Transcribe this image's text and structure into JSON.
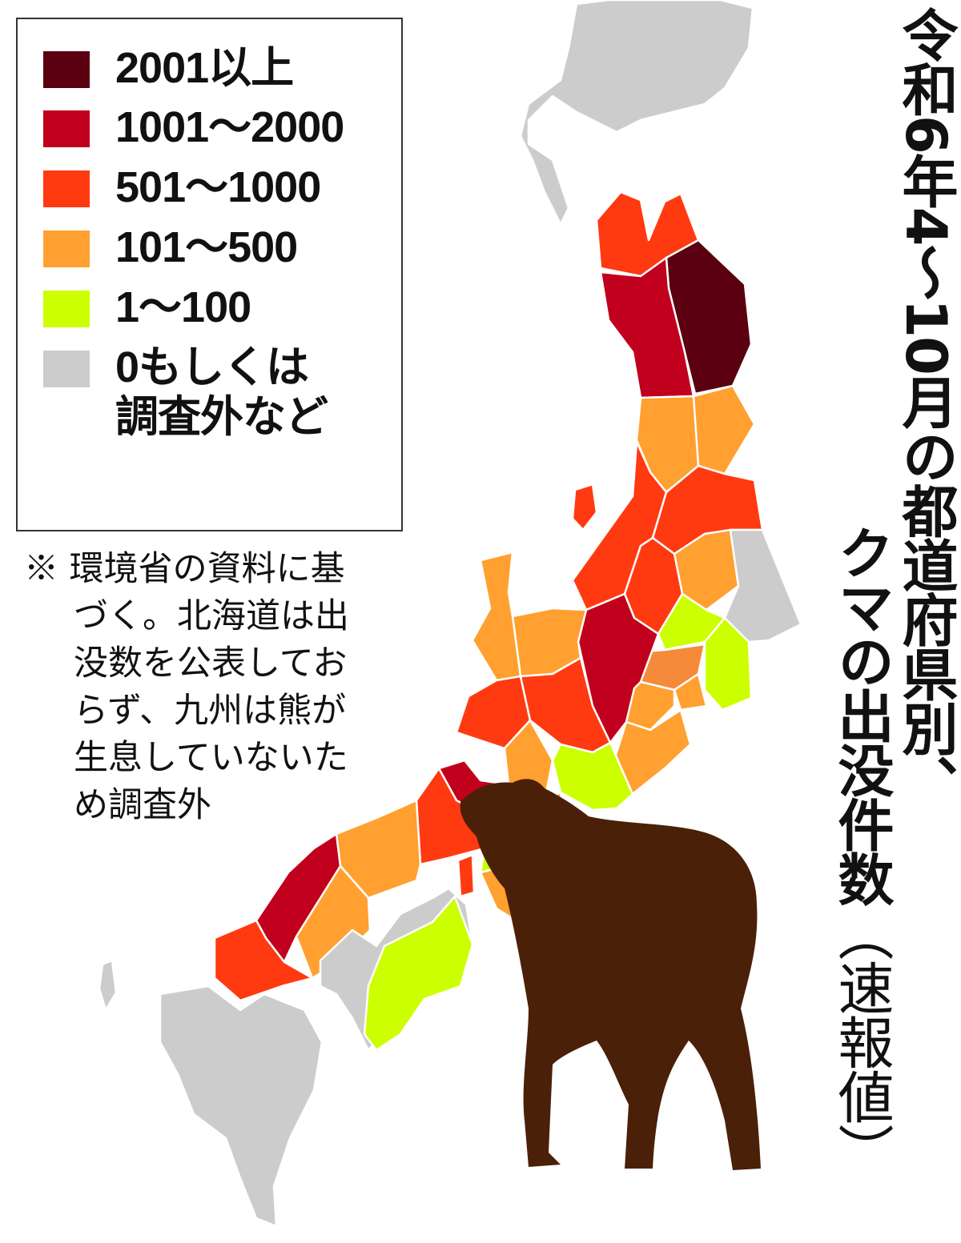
{
  "title": {
    "line1": "令和6年4～10月の都道府県別、",
    "line2_main": "クマの出没件数",
    "line2_paren": "（速報値）"
  },
  "legend": {
    "items": [
      {
        "label": "2001以上",
        "color": "#5a0010"
      },
      {
        "label": "1001～2000",
        "color": "#c0001c"
      },
      {
        "label": "501～1000",
        "color": "#ff3a10"
      },
      {
        "label": "101～500",
        "color": "#ffa030"
      },
      {
        "label": "1～100",
        "color": "#ccff00"
      },
      {
        "label": "0もしくは\n調査外など",
        "color": "#cccccc"
      }
    ]
  },
  "note": {
    "lines": [
      "※ 環境省の資料に基",
      "づく。北海道は出",
      "没数を公表してお",
      "らず、九州は熊が",
      "生息していないた",
      "め調査外"
    ]
  },
  "map_levels": {
    "hokkaido": 5,
    "aomori": 2,
    "iwate": 0,
    "akita": 1,
    "miyagi": 3,
    "yamagata": 3,
    "niigata": 2,
    "sado": 2,
    "fukushima": 2,
    "tochigi": 3,
    "ibaraki": 5,
    "gunma": 2,
    "saitama": 4,
    "chiba": 4,
    "tokyo": 3,
    "kanagawa": 3,
    "yamanashi": 3,
    "nagano": 1,
    "shizuoka": 3,
    "toyama": 3,
    "ishikawa": 3,
    "fukui": 2,
    "gifu": 2,
    "aichi": 4,
    "shiga": 3,
    "kyoto": 1,
    "mie": 3,
    "nara": 3,
    "wakayama": 3,
    "osaka": 4,
    "hyogo": 2,
    "awaji": 2,
    "tottori_okayama": 3,
    "hiroshima": 3,
    "shimane": 1,
    "yamaguchi": 2,
    "ehime_kagawa": 5,
    "kochi_tokushima": 4,
    "kyushu": 5,
    "oki": 5
  },
  "colors": {
    "border": "#ffffff",
    "coast": "#777777",
    "bear": "#4a2008"
  }
}
